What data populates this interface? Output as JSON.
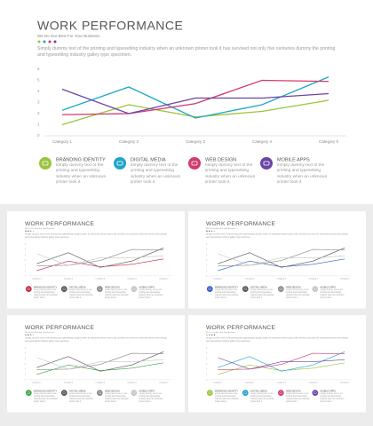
{
  "title": "WORK PERFORMANCE",
  "subtitle": "We Do Our Best For Your Business",
  "description": "Simply dummy text of the printing and typesetting industry when an unknown printer took it has survived not only five centuries dummy the printing and typesetting industry galley type specimen.",
  "chart_data": {
    "type": "line",
    "categories": [
      "Category 1",
      "Category 2",
      "Category 3",
      "Category 4",
      "Category 5"
    ],
    "ylim": [
      0,
      6
    ],
    "yticks": [
      0,
      1,
      2,
      3,
      4,
      5,
      6
    ],
    "grid": false,
    "series": [
      {
        "name": "BRANDING  IDENTITY",
        "color": "#9bc43c",
        "values": [
          1.0,
          2.8,
          1.7,
          2.2,
          3.2
        ]
      },
      {
        "name": "DIGITAL  MEDIA",
        "color": "#1fa5c8",
        "values": [
          2.3,
          4.4,
          1.6,
          2.8,
          5.3
        ]
      },
      {
        "name": "WEB DESIGN",
        "color": "#d13b6c",
        "values": [
          1.9,
          2.0,
          2.9,
          5.0,
          4.9
        ]
      },
      {
        "name": "MOBILE APPS",
        "color": "#6a45a8",
        "values": [
          4.2,
          2.0,
          3.4,
          3.4,
          3.8
        ]
      }
    ]
  },
  "legend_descriptions": [
    "Simply dummy text of the printing and typesetting industry when an unknown printer took it.",
    "Simply dummy text of the printing and typesetting industry when an unknown printer took it.",
    "Simply dummy text of the printing and typesetting industry when an unknown printer took it.",
    "Simply dummy text of the printing and typesetting industry when an unknown printer took it."
  ],
  "thumbnails": [
    {
      "title": "WORK PERFORMANCE",
      "colors": [
        "#c8263f",
        "#555555",
        "#8a8a8a",
        "#c4c4c4"
      ]
    },
    {
      "title": "WORK PERFORMANCE",
      "colors": [
        "#2f5fc4",
        "#555555",
        "#8a8a8a",
        "#c4c4c4"
      ]
    },
    {
      "title": "WORK PERFORMANCE",
      "colors": [
        "#3aa63f",
        "#555555",
        "#8a8a8a",
        "#c4c4c4"
      ]
    },
    {
      "title": "WORK PERFORMANCE",
      "colors": [
        "#9bc43c",
        "#1fa5c8",
        "#d13b6c",
        "#6a45a8"
      ]
    }
  ]
}
